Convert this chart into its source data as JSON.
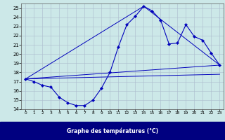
{
  "xlabel": "Graphe des températures (°C)",
  "xlim": [
    -0.5,
    23.5
  ],
  "ylim": [
    14,
    25.5
  ],
  "yticks": [
    14,
    15,
    16,
    17,
    18,
    19,
    20,
    21,
    22,
    23,
    24,
    25
  ],
  "xticks": [
    0,
    1,
    2,
    3,
    4,
    5,
    6,
    7,
    8,
    9,
    10,
    11,
    12,
    13,
    14,
    15,
    16,
    17,
    18,
    19,
    20,
    21,
    22,
    23
  ],
  "bg_color": "#cce8e8",
  "grid_color": "#aabbcc",
  "line_color": "#0000bb",
  "main_x": [
    0,
    1,
    2,
    3,
    4,
    5,
    6,
    7,
    8,
    9,
    10,
    11,
    12,
    13,
    14,
    15,
    16,
    17,
    18,
    19,
    20,
    21,
    22,
    23
  ],
  "main_y": [
    17.3,
    17.0,
    16.6,
    16.4,
    15.3,
    14.7,
    14.4,
    14.4,
    15.0,
    16.3,
    18.0,
    20.8,
    23.2,
    24.1,
    25.2,
    24.7,
    23.7,
    21.1,
    21.2,
    23.2,
    21.9,
    21.5,
    20.1,
    18.8
  ],
  "line2_x": [
    0,
    23
  ],
  "line2_y": [
    17.3,
    18.8
  ],
  "line3_x": [
    0,
    14,
    23
  ],
  "line3_y": [
    17.3,
    25.2,
    18.8
  ],
  "line4_x": [
    0,
    23
  ],
  "line4_y": [
    17.3,
    17.8
  ],
  "figsize": [
    3.2,
    2.0
  ],
  "dpi": 100,
  "label_bg_color": "#000080",
  "label_text_color": "#ffffff"
}
